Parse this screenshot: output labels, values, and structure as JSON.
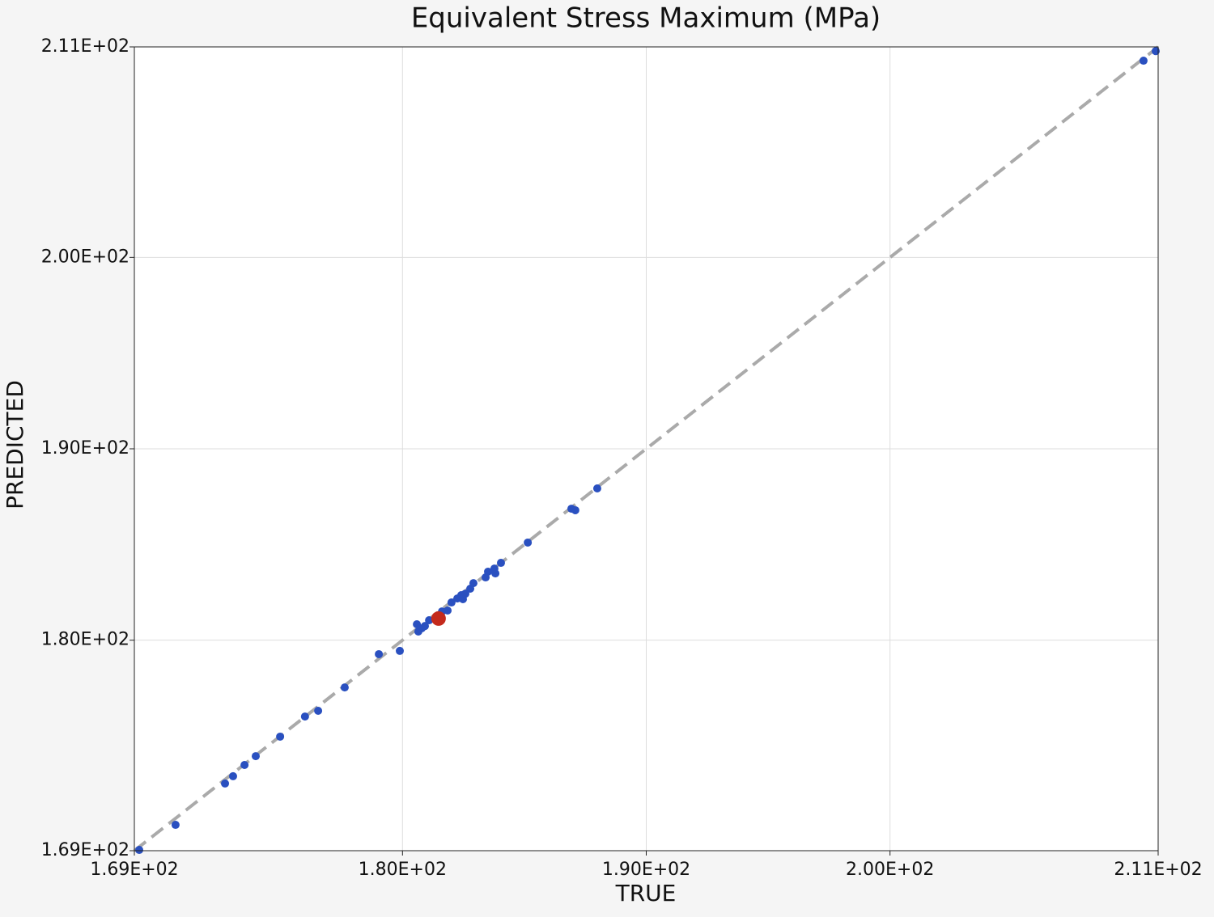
{
  "chart_data": {
    "type": "scatter",
    "title": "Equivalent Stress Maximum (MPa)",
    "x_label": "TRUE",
    "y_label": "PREDICTED",
    "xlim": [
      169,
      211
    ],
    "ylim": [
      169,
      211
    ],
    "xticks": [
      {
        "value": 169,
        "label": "1.69E+02"
      },
      {
        "value": 180,
        "label": "1.80E+02"
      },
      {
        "value": 190,
        "label": "1.90E+02"
      },
      {
        "value": 200,
        "label": "2.00E+02"
      },
      {
        "value": 211,
        "label": "2.11E+02"
      }
    ],
    "yticks": [
      {
        "value": 169,
        "label": "1.69E+02"
      },
      {
        "value": 180,
        "label": "1.80E+02"
      },
      {
        "value": 190,
        "label": "1.90E+02"
      },
      {
        "value": 200,
        "label": "2.00E+02"
      },
      {
        "value": 211,
        "label": "2.11E+02"
      }
    ],
    "grid": true,
    "series": [
      {
        "color": "#2a50c0",
        "x": [
          169.2,
          170.69,
          172.72,
          173.05,
          173.52,
          173.98,
          174.98,
          176.0,
          176.54,
          177.63,
          179.03,
          179.89,
          180.59,
          180.65,
          180.79,
          180.92,
          181.09,
          181.62,
          181.85,
          182.01,
          182.25,
          182.41,
          182.48,
          182.58,
          182.78,
          182.91,
          183.41,
          183.51,
          183.81,
          183.77,
          184.04,
          185.14,
          186.93,
          187.09,
          187.99,
          210.4,
          210.9
        ],
        "values": [
          169.04,
          170.35,
          172.51,
          172.89,
          173.48,
          173.94,
          174.96,
          176.01,
          176.31,
          177.53,
          179.27,
          179.44,
          180.83,
          180.45,
          180.62,
          180.74,
          181.04,
          181.5,
          181.55,
          181.97,
          182.18,
          182.35,
          182.14,
          182.43,
          182.69,
          182.98,
          183.28,
          183.58,
          183.49,
          183.74,
          184.04,
          185.1,
          186.87,
          186.79,
          187.93,
          210.28,
          210.78
        ]
      },
      {
        "color": "#c42a1c",
        "x": [
          181.48
        ],
        "values": [
          181.13
        ]
      }
    ]
  }
}
